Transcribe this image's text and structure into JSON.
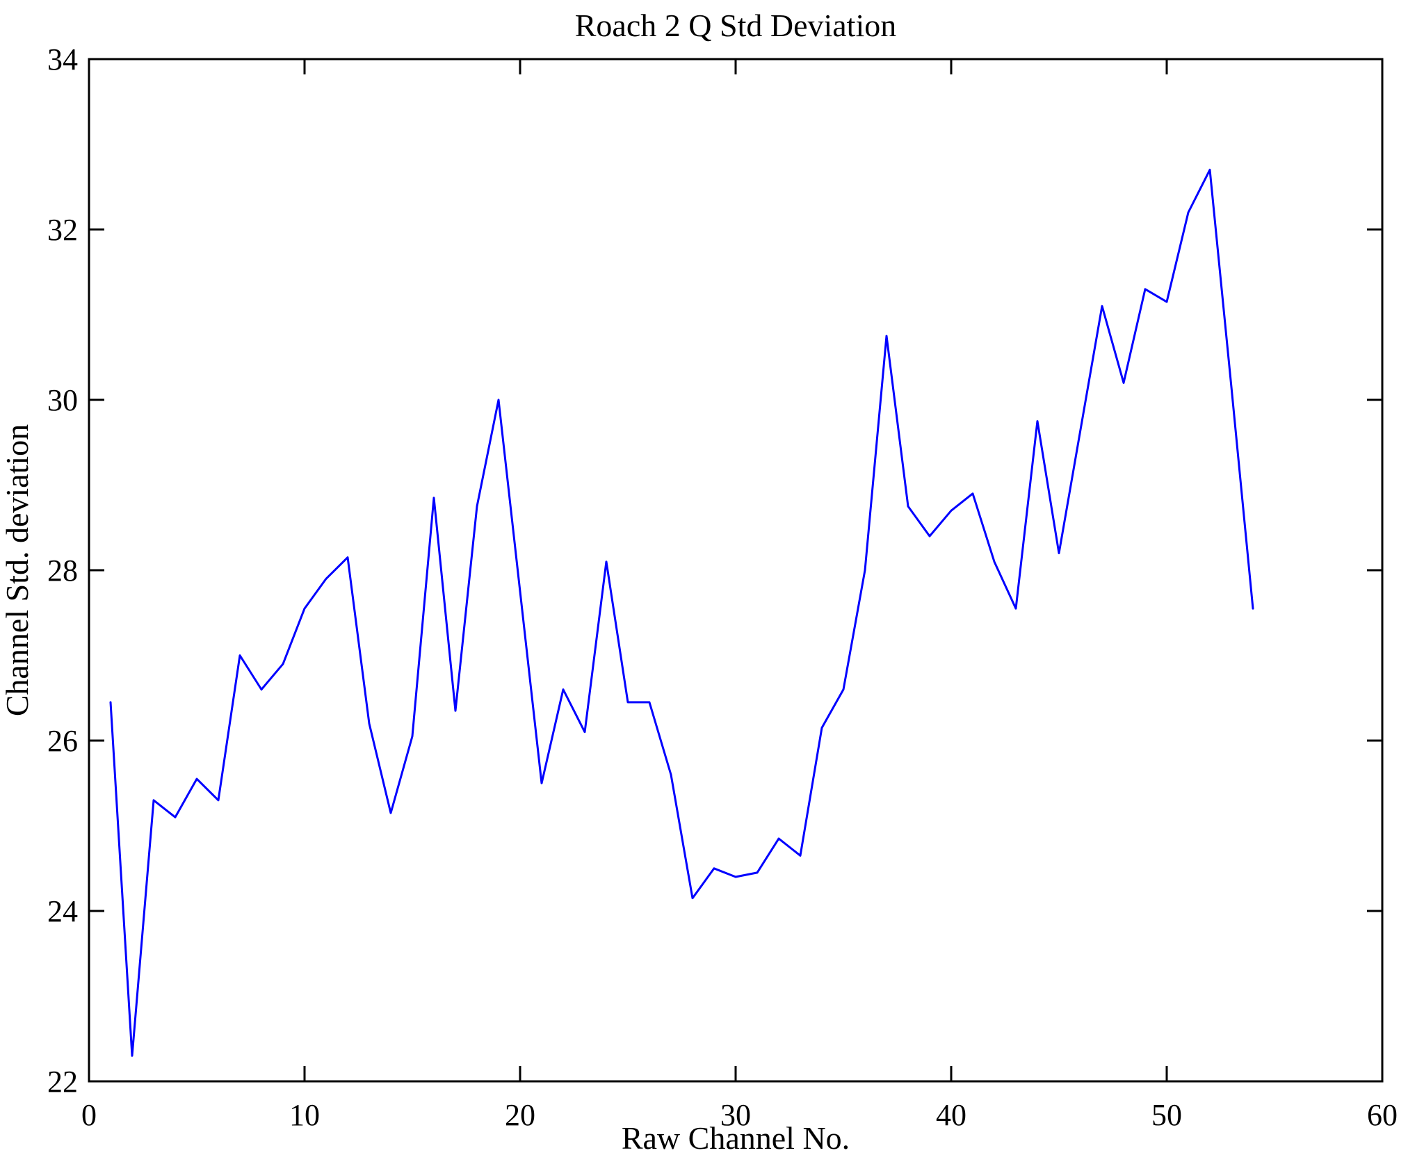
{
  "chart_data": {
    "type": "line",
    "title": "Roach 2 Q Std Deviation",
    "xlabel": "Raw Channel No.",
    "ylabel": "Channel Std. deviation",
    "x": [
      1,
      2,
      3,
      4,
      5,
      6,
      7,
      8,
      9,
      10,
      11,
      12,
      13,
      14,
      15,
      16,
      17,
      18,
      19,
      20,
      21,
      22,
      23,
      24,
      25,
      26,
      27,
      28,
      29,
      30,
      31,
      32,
      33,
      34,
      35,
      36,
      37,
      38,
      39,
      40,
      41,
      42,
      43,
      44,
      45,
      46,
      47,
      48,
      49,
      50,
      51,
      52,
      53,
      54
    ],
    "values": [
      26.45,
      22.3,
      25.3,
      25.1,
      25.55,
      25.3,
      27.0,
      26.6,
      26.9,
      27.55,
      27.9,
      28.15,
      26.2,
      25.15,
      26.05,
      28.85,
      26.35,
      28.75,
      30.0,
      27.75,
      25.5,
      26.6,
      26.1,
      28.1,
      26.45,
      26.45,
      25.6,
      24.15,
      24.5,
      24.4,
      24.45,
      24.85,
      24.65,
      26.15,
      26.6,
      28.0,
      30.75,
      28.75,
      28.4,
      28.7,
      28.9,
      28.1,
      27.55,
      29.75,
      28.2,
      29.65,
      31.1,
      30.2,
      31.3,
      31.15,
      32.2,
      32.7,
      30.15,
      27.55
    ],
    "xlim": [
      0,
      60
    ],
    "ylim": [
      22,
      34
    ],
    "xticks": [
      0,
      10,
      20,
      30,
      40,
      50,
      60
    ],
    "yticks": [
      22,
      24,
      26,
      28,
      30,
      32,
      34
    ],
    "grid": false,
    "legend": null,
    "line_color": "#0000ff",
    "axis_color": "#000000",
    "background": "#ffffff"
  }
}
